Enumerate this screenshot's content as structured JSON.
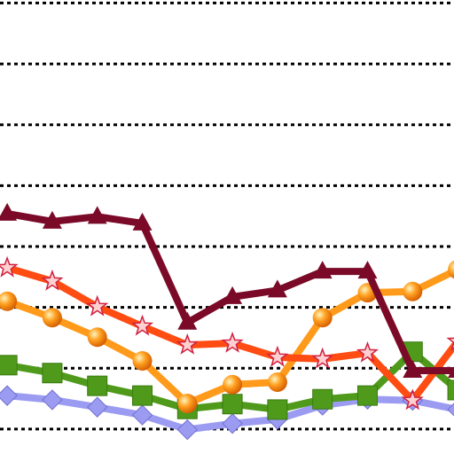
{
  "chart_data": {
    "type": "line",
    "x": [
      0,
      1,
      2,
      3,
      4,
      5,
      6,
      7,
      8,
      9,
      10
    ],
    "xlim": [
      -0.16,
      9.92
    ],
    "ylim": [
      -0.41,
      7.05
    ],
    "yticks": [
      0,
      1,
      2,
      3,
      4,
      5,
      6,
      7
    ],
    "grid": true,
    "series": [
      {
        "color": "#9b9bf2",
        "marker": "diamond",
        "values": [
          0.55,
          0.48,
          0.36,
          0.23,
          -0.01,
          0.09,
          0.16,
          0.39,
          0.49,
          0.47,
          0.32
        ]
      },
      {
        "color": "#4f9a1b",
        "marker": "square",
        "values": [
          1.05,
          0.92,
          0.71,
          0.55,
          0.33,
          0.41,
          0.32,
          0.49,
          0.55,
          1.27,
          0.64
        ]
      },
      {
        "color": "#ff9a1a",
        "marker": "circle",
        "values": [
          2.1,
          1.83,
          1.51,
          1.12,
          0.42,
          0.73,
          0.77,
          1.83,
          2.24,
          2.26,
          2.62
        ]
      },
      {
        "color": "#ff4c12",
        "marker": "star",
        "values": [
          2.65,
          2.43,
          2.01,
          1.69,
          1.38,
          1.41,
          1.18,
          1.15,
          1.25,
          0.47,
          1.44
        ]
      },
      {
        "color": "#7a0a28",
        "marker": "triangle",
        "values": [
          3.54,
          3.41,
          3.49,
          3.38,
          1.75,
          2.17,
          2.28,
          2.59,
          2.59,
          0.96,
          0.96
        ]
      }
    ]
  }
}
